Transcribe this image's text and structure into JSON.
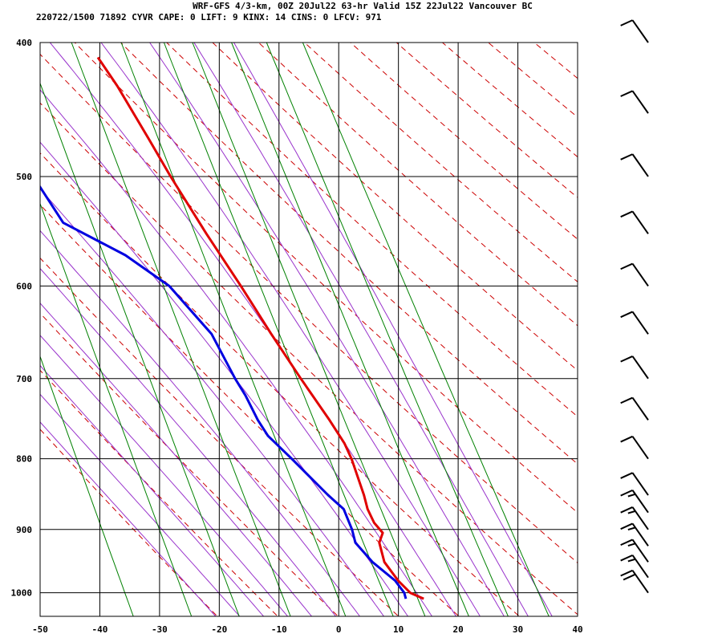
{
  "header": {
    "line1": "WRF-GFS 4/3-km, 00Z 20Jul22 63-hr Valid 15Z 22Jul22 Vancouver BC",
    "line2": "220722/1500 71892  CYVR    CAPE:     0 LIFT:     9 KINX:    14 CINS:     0 LFCV:   971"
  },
  "chart_data": {
    "type": "line",
    "subtype": "skew-t log-p sounding",
    "title": "WRF-GFS 4/3-km, 00Z 20Jul22 63-hr Valid 15Z 22Jul22 Vancouver BC",
    "station": "CYVR",
    "xlim": [
      -50,
      40
    ],
    "ylim_pressure_hpa": [
      1040,
      400
    ],
    "y_scale": "log",
    "x_ticks": [
      -50,
      -40,
      -30,
      -20,
      -10,
      0,
      10,
      20,
      30,
      40
    ],
    "y_ticks": [
      400,
      500,
      600,
      700,
      800,
      900,
      1000
    ],
    "grid": true,
    "series": [
      {
        "role": "temperature",
        "color": "#e00000",
        "points": [
          [
            1010,
            15
          ],
          [
            1000,
            13
          ],
          [
            980,
            11.5
          ],
          [
            950,
            10
          ],
          [
            920,
            10
          ],
          [
            905,
            11
          ],
          [
            890,
            10
          ],
          [
            870,
            9.5
          ],
          [
            850,
            9.5
          ],
          [
            800,
            9
          ],
          [
            780,
            8.5
          ],
          [
            750,
            7
          ],
          [
            700,
            4
          ],
          [
            650,
            1
          ],
          [
            600,
            -2
          ],
          [
            550,
            -5.5
          ],
          [
            500,
            -9
          ],
          [
            470,
            -11
          ],
          [
            430,
            -14
          ],
          [
            410,
            -16
          ]
        ]
      },
      {
        "role": "dewpoint",
        "color": "#0000e0",
        "points": [
          [
            1010,
            12
          ],
          [
            1000,
            12
          ],
          [
            980,
            11
          ],
          [
            950,
            8
          ],
          [
            920,
            6
          ],
          [
            900,
            6
          ],
          [
            870,
            5.5
          ],
          [
            850,
            3.5
          ],
          [
            800,
            -1
          ],
          [
            770,
            -4
          ],
          [
            750,
            -5
          ],
          [
            720,
            -6
          ],
          [
            700,
            -7
          ],
          [
            650,
            -9
          ],
          [
            600,
            -14
          ],
          [
            570,
            -20
          ],
          [
            540,
            -29
          ],
          [
            500,
            -32
          ],
          [
            470,
            -34
          ],
          [
            420,
            -31
          ],
          [
            410,
            -31
          ]
        ]
      }
    ],
    "wind_barbs": [
      {
        "pressure": 1000,
        "speed_kt": 20
      },
      {
        "pressure": 975,
        "speed_kt": 15
      },
      {
        "pressure": 950,
        "speed_kt": 15
      },
      {
        "pressure": 925,
        "speed_kt": 15
      },
      {
        "pressure": 900,
        "speed_kt": 15
      },
      {
        "pressure": 875,
        "speed_kt": 15
      },
      {
        "pressure": 850,
        "speed_kt": 10
      },
      {
        "pressure": 800,
        "speed_kt": 10
      },
      {
        "pressure": 750,
        "speed_kt": 10
      },
      {
        "pressure": 700,
        "speed_kt": 10
      },
      {
        "pressure": 650,
        "speed_kt": 10
      },
      {
        "pressure": 600,
        "speed_kt": 10
      },
      {
        "pressure": 550,
        "speed_kt": 10
      },
      {
        "pressure": 500,
        "speed_kt": 10
      },
      {
        "pressure": 450,
        "speed_kt": 10
      },
      {
        "pressure": 400,
        "speed_kt": 10
      }
    ],
    "colors": {
      "dry_adiabat": "#cc0000",
      "moist_adiabat": "#9933cc",
      "mixing_ratio": "#008000",
      "gridline": "#000000",
      "wind_barb": "#000000"
    }
  }
}
